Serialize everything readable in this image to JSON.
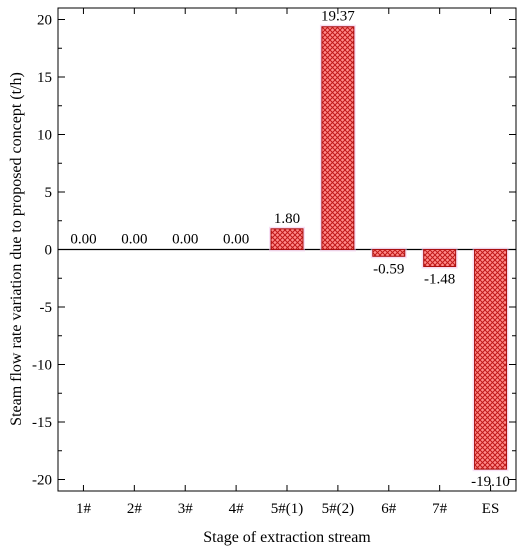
{
  "chart_data": {
    "type": "bar",
    "categories": [
      "1#",
      "2#",
      "3#",
      "4#",
      "5#(1)",
      "5#(2)",
      "6#",
      "7#",
      "ES"
    ],
    "values": [
      0.0,
      0.0,
      0.0,
      0.0,
      1.8,
      19.37,
      -0.59,
      -1.48,
      -19.1
    ],
    "value_labels": [
      "0.00",
      "0.00",
      "0.00",
      "0.00",
      "1.80",
      "19.37",
      "-0.59",
      "-1.48",
      "-19.10"
    ],
    "xlabel": "Stage of extraction stream",
    "ylabel": "Steam flow rate variation due to proposed concept (t/h)",
    "ylim": [
      -21,
      21
    ],
    "yticks": [
      -20,
      -15,
      -10,
      -5,
      0,
      5,
      10,
      15,
      20
    ],
    "ytick_labels": [
      "-20",
      "-15",
      "-10",
      "-5",
      "0",
      "5",
      "10",
      "15",
      "20"
    ],
    "grid": false,
    "bar_fill_color": "#ff8080",
    "bar_pattern_color": "#c01818",
    "bar_edge_color": "#aa1010"
  }
}
